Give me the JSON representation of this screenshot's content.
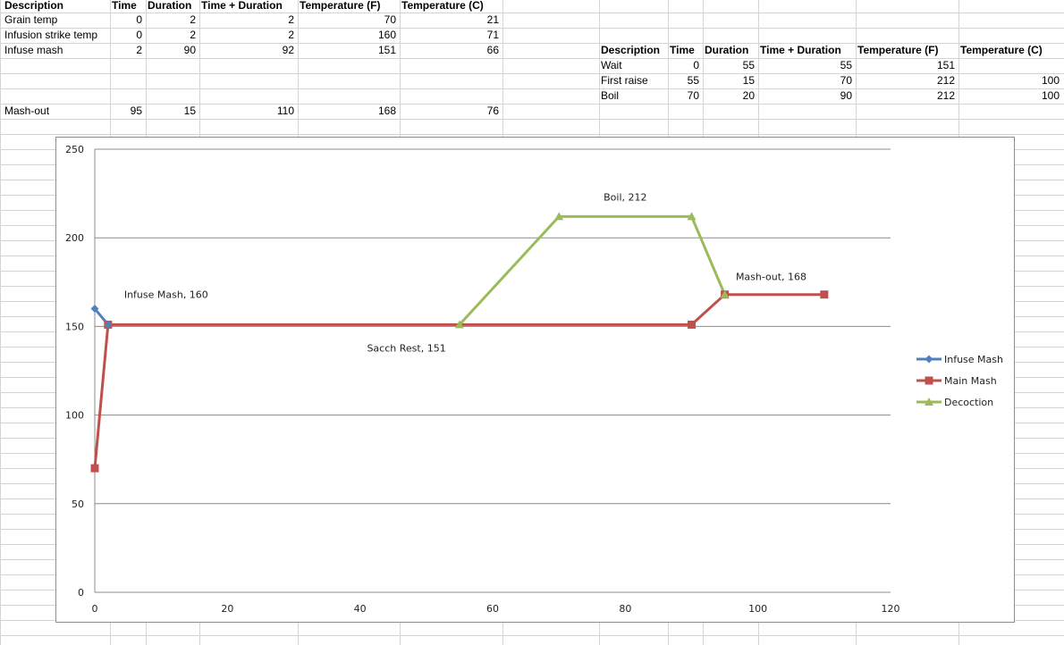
{
  "table1": {
    "headers": [
      "Description",
      "Time",
      "Duration",
      "Time + Duration",
      "Temperature (F)",
      "Temperature (C)"
    ],
    "rows": [
      [
        "Grain temp",
        "0",
        "2",
        "2",
        "70",
        "21"
      ],
      [
        "Infusion strike temp",
        "0",
        "2",
        "2",
        "160",
        "71"
      ],
      [
        "Infuse mash",
        "2",
        "90",
        "92",
        "151",
        "66"
      ]
    ],
    "mashout": [
      "Mash-out",
      "95",
      "15",
      "110",
      "168",
      "76"
    ]
  },
  "table2": {
    "headers": [
      "Description",
      "Time",
      "Duration",
      "Time + Duration",
      "Temperature (F)",
      "Temperature (C)"
    ],
    "rows": [
      [
        "Wait",
        "0",
        "55",
        "55",
        "151",
        ""
      ],
      [
        "First raise",
        "55",
        "15",
        "70",
        "212",
        "100"
      ],
      [
        "Boil",
        "70",
        "20",
        "90",
        "212",
        "100"
      ]
    ]
  },
  "chart_data": {
    "type": "line",
    "xlim": [
      0,
      120
    ],
    "ylim": [
      0,
      250
    ],
    "x_ticks": [
      0,
      20,
      40,
      60,
      80,
      100,
      120
    ],
    "y_ticks": [
      0,
      50,
      100,
      150,
      200,
      250
    ],
    "horizontal_grid": true,
    "legend_position": "right",
    "series": [
      {
        "name": "Infuse Mash",
        "color": "#4f81bd",
        "marker": "diamond",
        "points": [
          [
            0,
            160
          ],
          [
            2,
            151
          ]
        ]
      },
      {
        "name": "Main Mash",
        "color": "#c0504d",
        "marker": "square",
        "points": [
          [
            0,
            70
          ],
          [
            2,
            151
          ],
          [
            90,
            151
          ],
          [
            95,
            168
          ],
          [
            110,
            168
          ]
        ]
      },
      {
        "name": "Decoction",
        "color": "#9bbb59",
        "marker": "triangle",
        "points": [
          [
            55,
            151
          ],
          [
            70,
            212
          ],
          [
            90,
            212
          ],
          [
            95,
            168
          ]
        ]
      }
    ],
    "annotations": [
      {
        "text": "Infuse Mash, 160",
        "x": 2,
        "y": 160
      },
      {
        "text": "Sacch Rest, 151",
        "x": 47,
        "y": 151
      },
      {
        "text": "Boil, 212",
        "x": 80,
        "y": 212
      },
      {
        "text": "Mash-out, 168",
        "x": 102,
        "y": 168
      }
    ]
  }
}
